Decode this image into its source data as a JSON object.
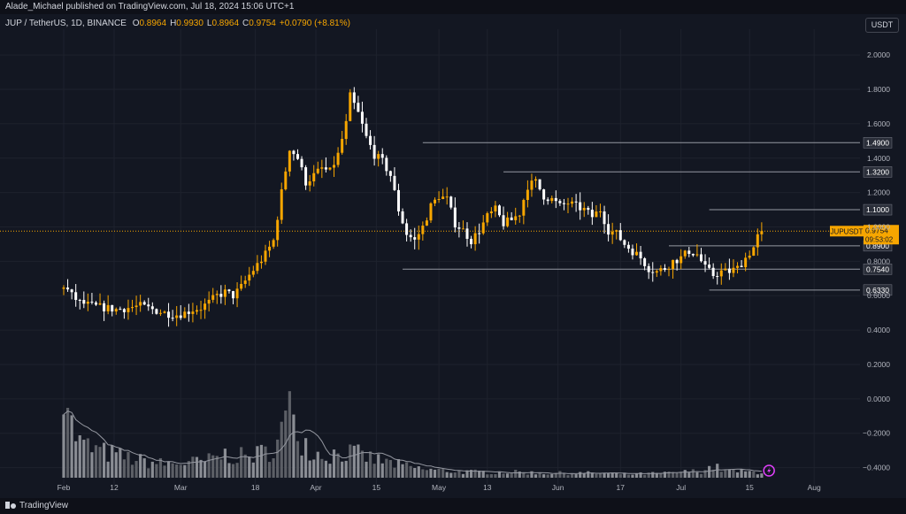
{
  "header": {
    "publisher_line": "Alade_Michael published on TradingView.com, Jul 18, 2024 15:06 UTC+1",
    "symbol": "JUP / TetherUS, 1D, BINANCE",
    "ohlc": [
      {
        "key": "O",
        "value": "0.8964"
      },
      {
        "key": "H",
        "value": "0.9930"
      },
      {
        "key": "L",
        "value": "0.8964"
      },
      {
        "key": "C",
        "value": "0.9754"
      },
      {
        "key": "",
        "value": "+0.0790 (+8.81%)"
      }
    ],
    "currency": "USDT"
  },
  "footer": {
    "brand": "TradingView"
  },
  "colors": {
    "background": "#131722",
    "up": "#f7a600",
    "down": "#ffffff",
    "volume": "#9e9e9e",
    "level_line": "#9598a1",
    "grid": "#1e222d"
  },
  "chart_data": {
    "type": "candlestick",
    "x_tick_labels": [
      "Feb",
      "12",
      "Mar",
      "18",
      "Apr",
      "15",
      "May",
      "13",
      "Jun",
      "17",
      "Jul",
      "15",
      "Aug"
    ],
    "y_ticks": [
      "2.0000",
      "1.8000",
      "1.6000",
      "1.4000",
      "1.2000",
      "1.0000",
      "0.8000",
      "0.6000",
      "0.4000",
      "0.2000",
      "0.0000",
      "−0.2000",
      "−0.4000"
    ],
    "y_tick_values": [
      2.0,
      1.8,
      1.6,
      1.4,
      1.2,
      1.0,
      0.8,
      0.6,
      0.4,
      0.2,
      0.0,
      -0.2,
      -0.4
    ],
    "ylim": [
      -0.5,
      2.15
    ],
    "levels": [
      {
        "label": "1.4900",
        "value": 1.49,
        "from_day": 178
      },
      {
        "label": "1.3200",
        "value": 1.32,
        "from_day": 218
      },
      {
        "label": "1.1000",
        "value": 1.1,
        "from_day": 320
      },
      {
        "label": "0.8900",
        "value": 0.89,
        "from_day": 300
      },
      {
        "label": "0.7540",
        "value": 0.754,
        "from_day": 168
      },
      {
        "label": "0.6330",
        "value": 0.633,
        "from_day": 320
      }
    ],
    "last_price": {
      "symbol": "JUPUSDT",
      "value": "0.9754",
      "countdown": "09:53:02",
      "price": 0.9754
    },
    "waypoints": [
      [
        0,
        0.64
      ],
      [
        2,
        0.66
      ],
      [
        6,
        0.6
      ],
      [
        10,
        0.56
      ],
      [
        16,
        0.54
      ],
      [
        22,
        0.53
      ],
      [
        28,
        0.52
      ],
      [
        34,
        0.53
      ],
      [
        40,
        0.54
      ],
      [
        46,
        0.52
      ],
      [
        52,
        0.5
      ],
      [
        58,
        0.49
      ],
      [
        62,
        0.5
      ],
      [
        66,
        0.52
      ],
      [
        70,
        0.53
      ],
      [
        74,
        0.56
      ],
      [
        78,
        0.6
      ],
      [
        82,
        0.62
      ],
      [
        86,
        0.6
      ],
      [
        90,
        0.65
      ],
      [
        94,
        0.72
      ],
      [
        98,
        0.78
      ],
      [
        102,
        0.84
      ],
      [
        106,
        0.92
      ],
      [
        110,
        1.2
      ],
      [
        114,
        1.46
      ],
      [
        118,
        1.4
      ],
      [
        122,
        1.26
      ],
      [
        126,
        1.3
      ],
      [
        130,
        1.34
      ],
      [
        134,
        1.32
      ],
      [
        138,
        1.42
      ],
      [
        142,
        1.6
      ],
      [
        144,
        1.76
      ],
      [
        148,
        1.66
      ],
      [
        152,
        1.52
      ],
      [
        156,
        1.42
      ],
      [
        160,
        1.38
      ],
      [
        164,
        1.3
      ],
      [
        168,
        1.1
      ],
      [
        172,
        0.96
      ],
      [
        176,
        0.92
      ],
      [
        180,
        1.0
      ],
      [
        184,
        1.12
      ],
      [
        188,
        1.18
      ],
      [
        192,
        1.16
      ],
      [
        196,
        1.02
      ],
      [
        200,
        0.98
      ],
      [
        204,
        0.92
      ],
      [
        208,
        0.98
      ],
      [
        212,
        1.06
      ],
      [
        216,
        1.1
      ],
      [
        220,
        1.02
      ],
      [
        224,
        1.04
      ],
      [
        228,
        1.08
      ],
      [
        232,
        1.24
      ],
      [
        236,
        1.26
      ],
      [
        240,
        1.18
      ],
      [
        244,
        1.16
      ],
      [
        248,
        1.12
      ],
      [
        252,
        1.14
      ],
      [
        256,
        1.12
      ],
      [
        260,
        1.1
      ],
      [
        264,
        1.06
      ],
      [
        268,
        1.1
      ],
      [
        272,
        0.98
      ],
      [
        276,
        0.96
      ],
      [
        280,
        0.9
      ],
      [
        284,
        0.86
      ],
      [
        288,
        0.82
      ],
      [
        292,
        0.76
      ],
      [
        296,
        0.74
      ],
      [
        300,
        0.76
      ],
      [
        304,
        0.8
      ],
      [
        308,
        0.82
      ],
      [
        312,
        0.86
      ],
      [
        316,
        0.84
      ],
      [
        320,
        0.76
      ],
      [
        324,
        0.72
      ],
      [
        328,
        0.74
      ],
      [
        332,
        0.74
      ],
      [
        336,
        0.76
      ],
      [
        340,
        0.82
      ],
      [
        344,
        0.88
      ],
      [
        347,
        0.9754
      ]
    ],
    "volume_waypoints": [
      [
        0,
        1.0
      ],
      [
        2,
        0.75
      ],
      [
        4,
        0.45
      ],
      [
        8,
        0.3
      ],
      [
        14,
        0.25
      ],
      [
        20,
        0.22
      ],
      [
        30,
        0.18
      ],
      [
        40,
        0.14
      ],
      [
        50,
        0.12
      ],
      [
        60,
        0.13
      ],
      [
        70,
        0.14
      ],
      [
        80,
        0.2
      ],
      [
        90,
        0.18
      ],
      [
        100,
        0.22
      ],
      [
        106,
        0.3
      ],
      [
        110,
        0.5
      ],
      [
        114,
        0.62
      ],
      [
        118,
        0.35
      ],
      [
        124,
        0.22
      ],
      [
        130,
        0.2
      ],
      [
        140,
        0.22
      ],
      [
        146,
        0.2
      ],
      [
        154,
        0.16
      ],
      [
        164,
        0.12
      ],
      [
        172,
        0.09
      ],
      [
        180,
        0.07
      ],
      [
        200,
        0.05
      ],
      [
        220,
        0.05
      ],
      [
        240,
        0.04
      ],
      [
        260,
        0.04
      ],
      [
        280,
        0.03
      ],
      [
        300,
        0.04
      ],
      [
        316,
        0.06
      ],
      [
        322,
        0.1
      ],
      [
        328,
        0.06
      ],
      [
        340,
        0.05
      ],
      [
        347,
        0.05
      ]
    ]
  }
}
